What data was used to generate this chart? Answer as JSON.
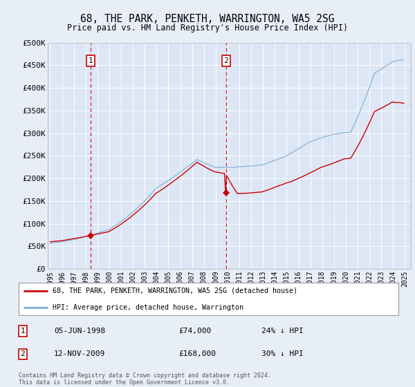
{
  "title": "68, THE PARK, PENKETH, WARRINGTON, WA5 2SG",
  "subtitle": "Price paid vs. HM Land Registry's House Price Index (HPI)",
  "background_color": "#e8eef7",
  "plot_bg_color": "#dce6f5",
  "ylabel_ticks": [
    "£0",
    "£50K",
    "£100K",
    "£150K",
    "£200K",
    "£250K",
    "£300K",
    "£350K",
    "£400K",
    "£450K",
    "£500K"
  ],
  "ytick_values": [
    0,
    50000,
    100000,
    150000,
    200000,
    250000,
    300000,
    350000,
    400000,
    450000,
    500000
  ],
  "xmin": 1994.8,
  "xmax": 2025.5,
  "ymin": 0,
  "ymax": 500000,
  "sale1_date": 1998.43,
  "sale1_price": 74000,
  "sale1_text": "05-JUN-1998",
  "sale1_pct": "24% ↓ HPI",
  "sale2_date": 2009.87,
  "sale2_price": 168000,
  "sale2_text": "12-NOV-2009",
  "sale2_pct": "30% ↓ HPI",
  "legend_entry1": "68, THE PARK, PENKETH, WARRINGTON, WA5 2SG (detached house)",
  "legend_entry2": "HPI: Average price, detached house, Warrington",
  "footer": "Contains HM Land Registry data © Crown copyright and database right 2024.\nThis data is licensed under the Open Government Licence v3.0.",
  "hpi_color": "#7bafd4",
  "sale_color": "#cc0000",
  "vline_color": "#cc0000",
  "xticks": [
    1995,
    1996,
    1997,
    1998,
    1999,
    2000,
    2001,
    2002,
    2003,
    2004,
    2005,
    2006,
    2007,
    2008,
    2009,
    2010,
    2011,
    2012,
    2013,
    2014,
    2015,
    2016,
    2017,
    2018,
    2019,
    2020,
    2021,
    2022,
    2023,
    2024,
    2025
  ]
}
